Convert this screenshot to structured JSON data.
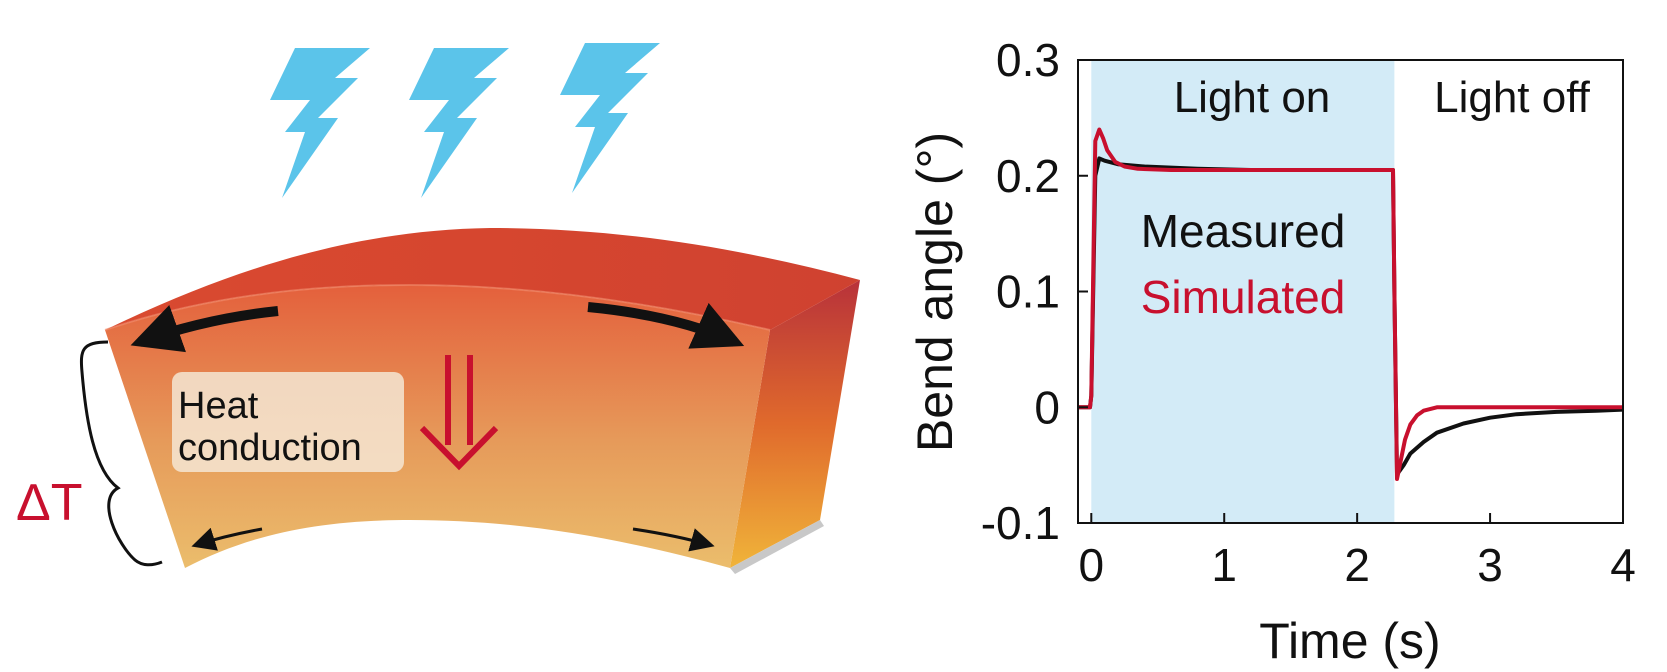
{
  "colors": {
    "lightning": "#5bc4ea",
    "bar_top": "#d5452f",
    "bar_bottom": "#e8b96a",
    "heat_arrow": "#c8102e",
    "delta_t": "#c8102e",
    "light_on_band": "#d3ebf7",
    "measured": "#111111",
    "simulated": "#c8102e"
  },
  "icons": [
    "lightning-icon",
    "lightning-icon",
    "lightning-icon",
    "double-down-arrow-icon",
    "brace-icon"
  ],
  "diagram": {
    "heat_label_line1": "Heat",
    "heat_label_line2": "conduction",
    "delta_t_label": "ΔT"
  },
  "chart_data": {
    "type": "line",
    "xlabel": "Time (s)",
    "ylabel": "Bend angle (°)",
    "xlim": [
      -0.1,
      4
    ],
    "ylim": [
      -0.1,
      0.3
    ],
    "x_ticks": [
      "0",
      "1",
      "2",
      "3",
      "4"
    ],
    "y_ticks": [
      "-0.1",
      "0",
      "0.1",
      "0.2",
      "0.3"
    ],
    "grid": false,
    "regions": [
      {
        "label": "Light on",
        "x_start": 0,
        "x_end": 2.28,
        "shaded": true
      },
      {
        "label": "Light off",
        "x_start": 2.28,
        "x_end": 4,
        "shaded": false
      }
    ],
    "legend": {
      "placement": "center",
      "entries": [
        "Measured",
        "Simulated"
      ]
    },
    "series": [
      {
        "name": "Measured",
        "x": [
          -0.1,
          -0.01,
          0.0,
          0.03,
          0.06,
          0.1,
          0.2,
          0.4,
          0.8,
          1.2,
          1.6,
          2.0,
          2.27,
          2.28,
          2.3,
          2.35,
          2.4,
          2.5,
          2.6,
          2.8,
          3.0,
          3.2,
          3.5,
          3.8,
          4.0
        ],
        "y": [
          0.0,
          0.0,
          0.01,
          0.2,
          0.215,
          0.213,
          0.21,
          0.208,
          0.206,
          0.205,
          0.205,
          0.205,
          0.205,
          0.1,
          -0.058,
          -0.05,
          -0.04,
          -0.03,
          -0.022,
          -0.014,
          -0.009,
          -0.006,
          -0.004,
          -0.003,
          -0.002
        ]
      },
      {
        "name": "Simulated",
        "x": [
          -0.1,
          -0.01,
          0.0,
          0.03,
          0.06,
          0.09,
          0.12,
          0.18,
          0.25,
          0.35,
          0.6,
          1.0,
          1.5,
          2.0,
          2.27,
          2.28,
          2.3,
          2.33,
          2.36,
          2.4,
          2.45,
          2.5,
          2.6,
          2.8,
          3.0,
          3.5,
          4.0
        ],
        "y": [
          0.0,
          0.0,
          0.01,
          0.23,
          0.24,
          0.232,
          0.222,
          0.212,
          0.208,
          0.206,
          0.205,
          0.205,
          0.205,
          0.205,
          0.205,
          0.1,
          -0.062,
          -0.045,
          -0.028,
          -0.015,
          -0.007,
          -0.003,
          0.0,
          0.0,
          0.0,
          0.0,
          0.0
        ]
      }
    ]
  }
}
